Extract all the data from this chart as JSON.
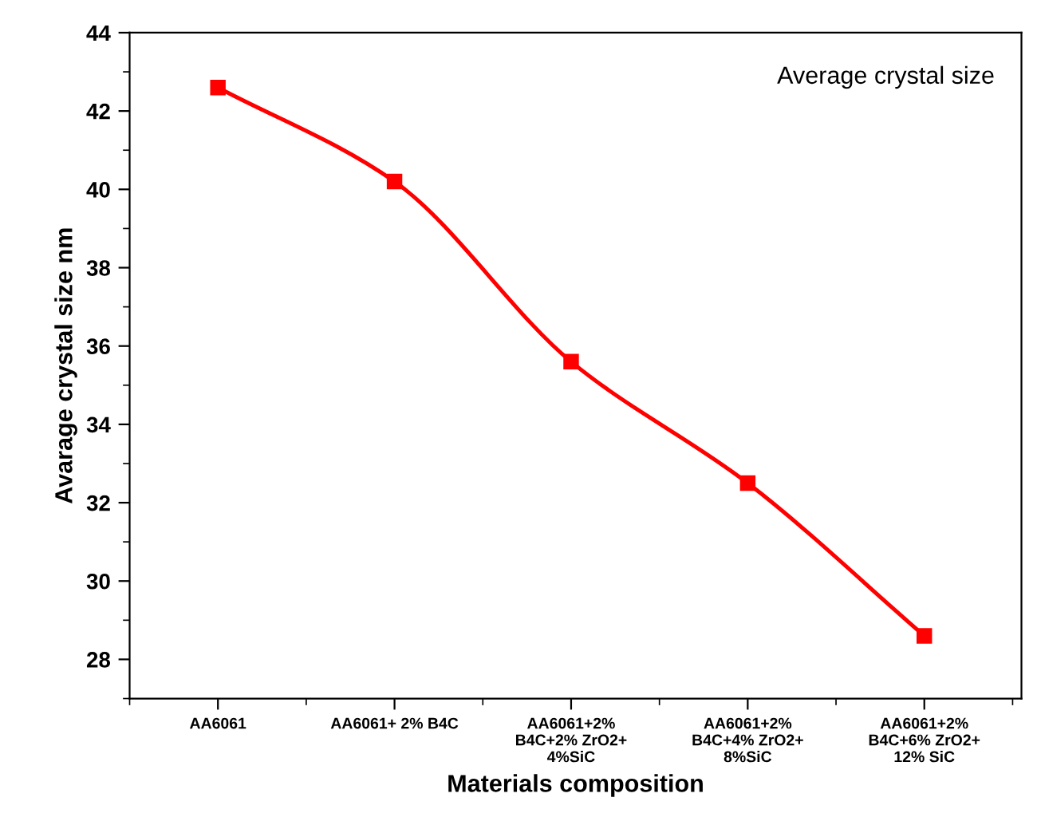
{
  "chart_data": {
    "type": "line",
    "xlabel": "Materials composition",
    "ylabel": "Avarage crystal size nm",
    "categories": [
      "AA6061",
      "AA6061+ 2% B4C",
      "AA6061+2%\nB4C+2% ZrO2+\n4%SiC",
      "AA6061+2%\nB4C+4% ZrO2+\n8%SiC",
      "AA6061+2%\nB4C+6% ZrO2+\n12% SiC"
    ],
    "series": [
      {
        "color": "#ff0000",
        "values": [
          42.6,
          40.2,
          35.6,
          32.5,
          28.6
        ]
      }
    ],
    "ylim": [
      27,
      44
    ],
    "yticks": [
      28,
      30,
      32,
      34,
      36,
      38,
      40,
      42,
      44
    ],
    "marker": "square",
    "line_style": "solid",
    "grid": false,
    "annotations": [
      "Average crystal size"
    ]
  }
}
